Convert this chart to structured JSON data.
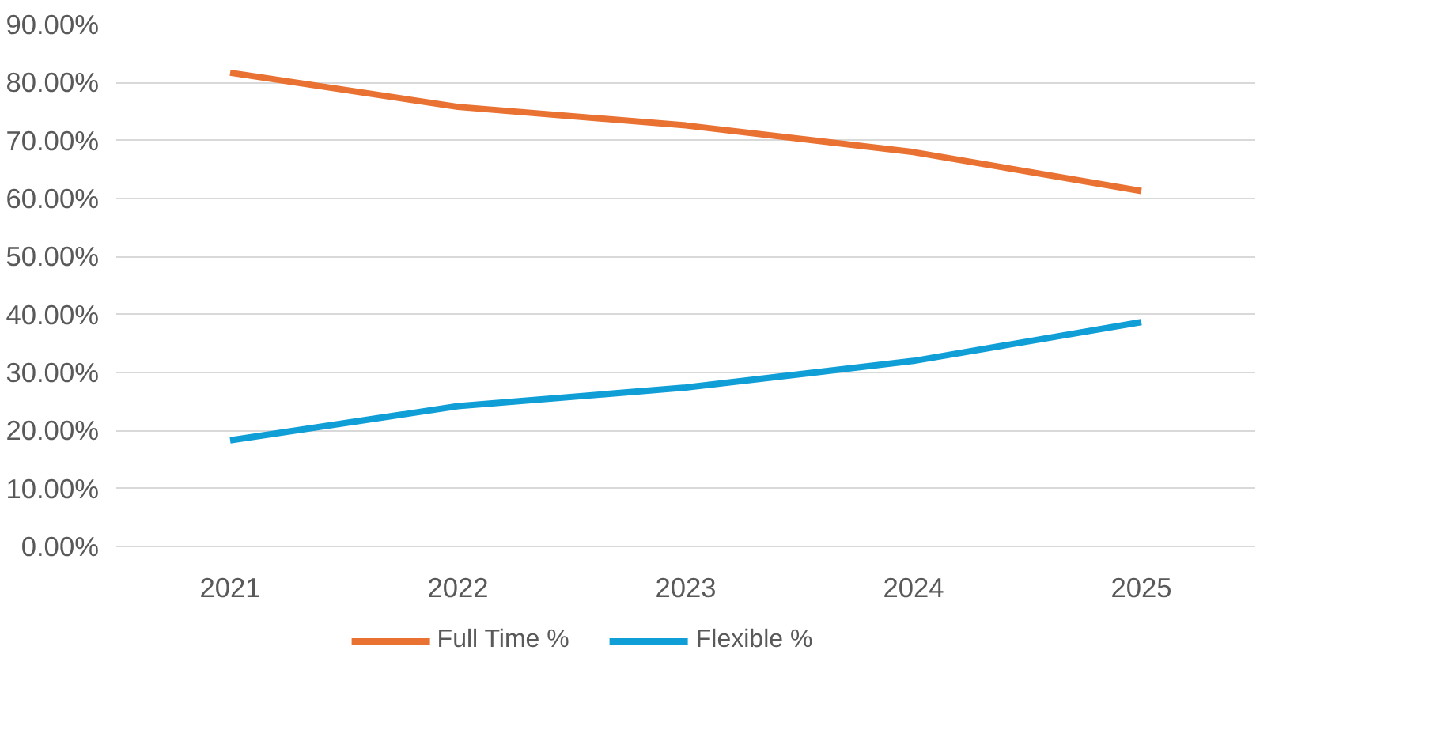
{
  "chart_data": {
    "type": "line",
    "categories": [
      "2021",
      "2022",
      "2023",
      "2024",
      "2025"
    ],
    "series": [
      {
        "name": "Full Time %",
        "color": "#e97132",
        "values": [
          81.7,
          75.8,
          72.6,
          68.0,
          61.3
        ]
      },
      {
        "name": "Flexible %",
        "color": "#0f9ed5",
        "values": [
          18.3,
          24.2,
          27.4,
          32.0,
          38.7
        ]
      }
    ],
    "ylim": [
      0,
      90
    ],
    "yticks": [
      {
        "value": 0,
        "label": "0.00%"
      },
      {
        "value": 10,
        "label": "10.00%"
      },
      {
        "value": 20,
        "label": "20.00%"
      },
      {
        "value": 30,
        "label": "30.00%"
      },
      {
        "value": 40,
        "label": "40.00%"
      },
      {
        "value": 50,
        "label": "50.00%"
      },
      {
        "value": 60,
        "label": "60.00%"
      },
      {
        "value": 70,
        "label": "70.00%"
      },
      {
        "value": 80,
        "label": "80.00%"
      },
      {
        "value": 90,
        "label": "90.00%"
      }
    ],
    "grid": "y",
    "legend": "bottom",
    "marker": "none",
    "line_style": "solid"
  }
}
